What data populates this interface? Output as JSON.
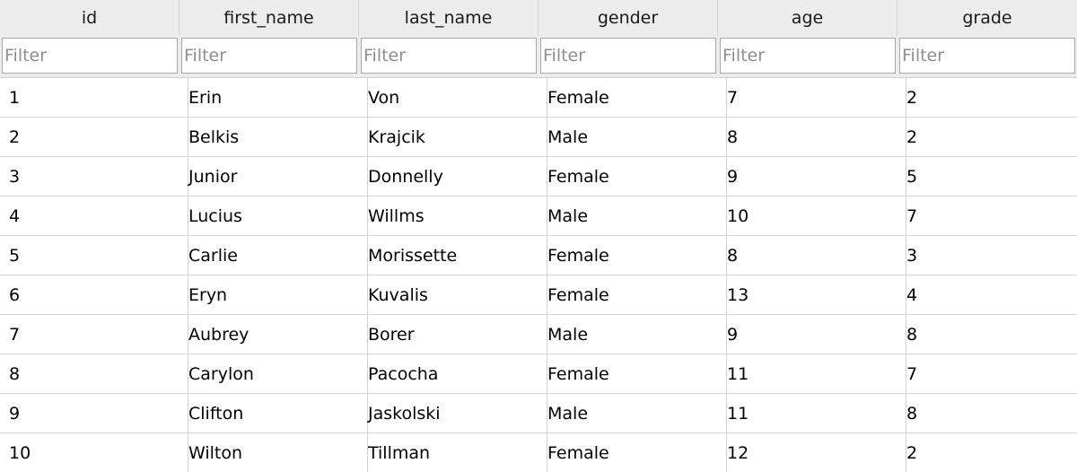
{
  "table": {
    "columns": [
      "id",
      "first_name",
      "last_name",
      "gender",
      "age",
      "grade"
    ],
    "filter_placeholder": "Filter",
    "rows": [
      [
        "1",
        "Erin",
        "Von",
        "Female",
        "7",
        "2"
      ],
      [
        "2",
        "Belkis",
        "Krajcik",
        "Male",
        "8",
        "2"
      ],
      [
        "3",
        "Junior",
        "Donnelly",
        "Female",
        "9",
        "5"
      ],
      [
        "4",
        "Lucius",
        "Willms",
        "Male",
        "10",
        "7"
      ],
      [
        "5",
        "Carlie",
        "Morissette",
        "Female",
        "8",
        "3"
      ],
      [
        "6",
        "Eryn",
        "Kuvalis",
        "Female",
        "13",
        "4"
      ],
      [
        "7",
        "Aubrey",
        "Borer",
        "Male",
        "9",
        "8"
      ],
      [
        "8",
        "Carylon",
        "Pacocha",
        "Female",
        "11",
        "7"
      ],
      [
        "9",
        "Clifton",
        "Jaskolski",
        "Male",
        "11",
        "8"
      ],
      [
        "10",
        "Wilton",
        "Tillman",
        "Female",
        "12",
        "2"
      ]
    ]
  }
}
